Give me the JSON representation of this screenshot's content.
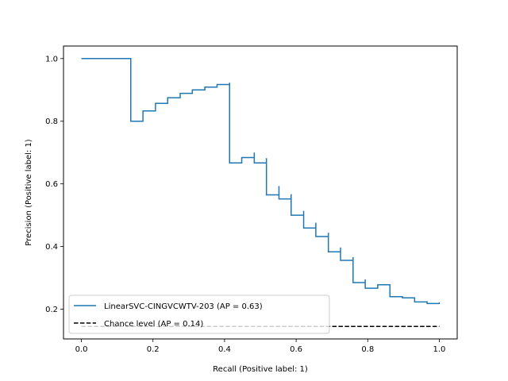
{
  "chart_data": {
    "type": "line",
    "title": "",
    "xlabel": "Recall (Positive label: 1)",
    "ylabel": "Precision (Positive label: 1)",
    "xlim": [
      -0.05,
      1.05
    ],
    "ylim": [
      0.105,
      1.04
    ],
    "xticks": [
      0.0,
      0.2,
      0.4,
      0.6,
      0.8,
      1.0
    ],
    "xtick_labels": [
      "0.0",
      "0.2",
      "0.4",
      "0.6",
      "0.8",
      "1.0"
    ],
    "yticks": [
      0.2,
      0.4,
      0.6,
      0.8,
      1.0
    ],
    "ytick_labels": [
      "0.2",
      "0.4",
      "0.6",
      "0.8",
      "1.0"
    ],
    "grid": false,
    "legend_position": "lower-left",
    "series": [
      {
        "name": "LinearSVC-CINGVCWTV-203 (AP = 0.63)",
        "color": "#1f77b4",
        "style": "steps-post",
        "x": [
          0.0,
          0.138,
          0.138,
          0.172,
          0.207,
          0.241,
          0.276,
          0.31,
          0.345,
          0.379,
          0.414,
          0.414,
          0.448,
          0.483,
          0.483,
          0.517,
          0.517,
          0.552,
          0.552,
          0.586,
          0.586,
          0.621,
          0.621,
          0.655,
          0.655,
          0.69,
          0.69,
          0.724,
          0.724,
          0.759,
          0.759,
          0.793,
          0.793,
          0.828,
          0.862,
          0.897,
          0.931,
          0.966,
          1.0
        ],
        "y": [
          1.0,
          1.0,
          0.8,
          0.833,
          0.857,
          0.875,
          0.889,
          0.9,
          0.909,
          0.917,
          0.923,
          0.667,
          0.684,
          0.7,
          0.667,
          0.682,
          0.565,
          0.593,
          0.552,
          0.567,
          0.5,
          0.514,
          0.459,
          0.476,
          0.432,
          0.444,
          0.383,
          0.397,
          0.356,
          0.366,
          0.285,
          0.295,
          0.267,
          0.278,
          0.24,
          0.236,
          0.223,
          0.218,
          0.222
        ]
      },
      {
        "name": "Chance level (AP = 0.14)",
        "color": "#000000",
        "style": "dashed",
        "x": [
          0.0,
          1.0
        ],
        "y": [
          0.145,
          0.145
        ]
      }
    ]
  }
}
